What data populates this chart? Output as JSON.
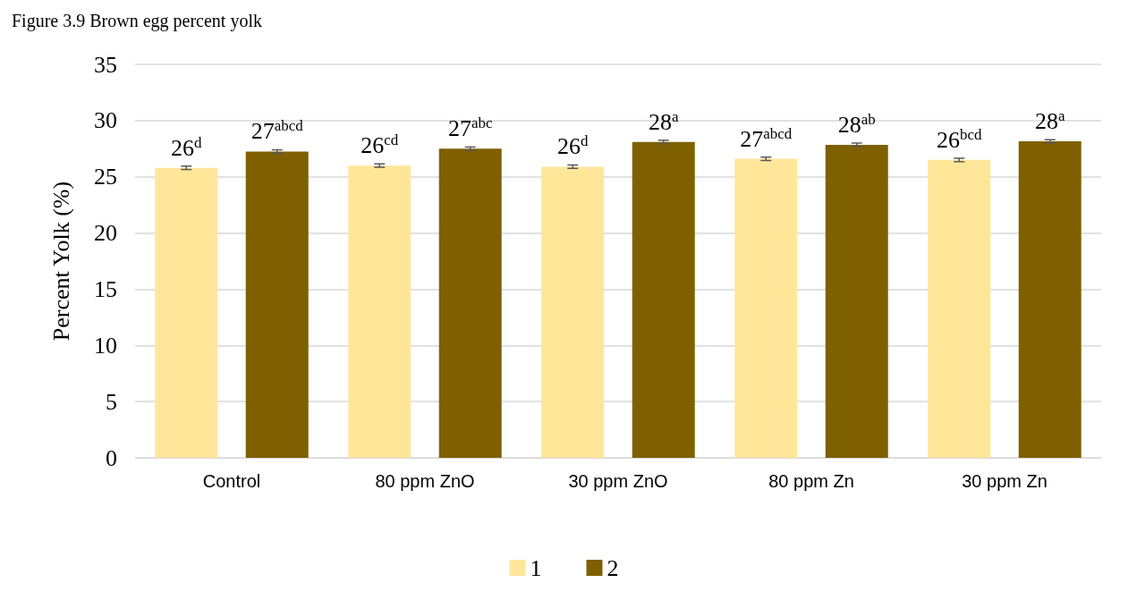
{
  "chart_data": {
    "type": "bar",
    "title": "Figure 3.9 Brown egg percent yolk",
    "ylabel": "Percent Yolk (%)",
    "categories": [
      "Control",
      "80 ppm ZnO",
      "30 ppm ZnO",
      "80 ppm Zn",
      "30 ppm Zn"
    ],
    "series": [
      {
        "name": "1",
        "color": "#ffe699",
        "values": [
          25.8,
          26.0,
          25.9,
          26.6,
          26.5
        ],
        "errors": [
          0.15,
          0.15,
          0.15,
          0.15,
          0.15
        ],
        "value_labels": [
          "26$^{d}$",
          "26$^{cd}$",
          "26$^{d}$",
          "27$^{abcd}$",
          "26$^{bcd}$"
        ]
      },
      {
        "name": "2",
        "color": "#7f6000",
        "values": [
          27.25,
          27.5,
          28.1,
          27.85,
          28.15
        ],
        "errors": [
          0.15,
          0.15,
          0.15,
          0.15,
          0.15
        ],
        "value_labels": [
          "27$^{abcd}$",
          "27$^{abc}$",
          "28$^{a}$",
          "28$^{ab}$",
          "28$^{a}$"
        ]
      }
    ],
    "ylim": [
      0,
      35
    ],
    "yticks": [
      0,
      5,
      10,
      15,
      20,
      25,
      30,
      35
    ],
    "grid": "y",
    "legend": "bottom"
  }
}
